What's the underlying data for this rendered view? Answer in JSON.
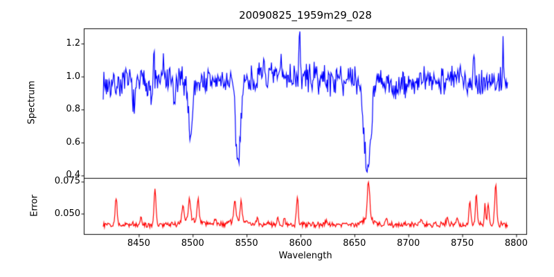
{
  "chart_data": {
    "type": "line",
    "title": "20090825_1959m29_028",
    "xlabel": "Wavelength",
    "grid": false,
    "legend": null,
    "x_start": 8417,
    "x_end": 8792,
    "x_step": 0.6,
    "xlim": [
      8399,
      8810
    ],
    "xticks": [
      8450,
      8500,
      8550,
      8600,
      8650,
      8700,
      8750,
      8800
    ],
    "xtick_labels": [
      "8450",
      "8500",
      "8550",
      "8600",
      "8650",
      "8700",
      "8750",
      "8800"
    ],
    "panels": [
      {
        "name": "spectrum",
        "ylabel": "Spectrum",
        "color": "#0000ff",
        "ylim": [
          0.385,
          1.292
        ],
        "yticks": [
          0.4,
          0.6,
          0.8,
          1.0,
          1.2
        ],
        "ytick_labels": [
          "0.4",
          "0.6",
          "0.8",
          "1.0",
          "1.2"
        ],
        "baseline": 0.97,
        "noise_amp": 0.105,
        "seed": 7,
        "features": [
          {
            "x": 8425,
            "amp": -0.02,
            "w": 8
          },
          {
            "x": 8446,
            "amp": -0.16,
            "w": 1.2
          },
          {
            "x": 8462,
            "amp": -0.15,
            "w": 0.8
          },
          {
            "x": 8464,
            "amp": 0.21,
            "w": 0.5
          },
          {
            "x": 8473,
            "amp": 0.13,
            "w": 0.5
          },
          {
            "x": 8483,
            "amp": -0.16,
            "w": 0.8
          },
          {
            "x": 8498,
            "amp": -0.33,
            "w": 1.8
          },
          {
            "x": 8542,
            "amp": -0.5,
            "w": 2.2
          },
          {
            "x": 8566,
            "amp": 0.17,
            "w": 0.5
          },
          {
            "x": 8582,
            "amp": 0.15,
            "w": 0.4
          },
          {
            "x": 8590,
            "amp": 0.03,
            "w": 25
          },
          {
            "x": 8599,
            "amp": 0.26,
            "w": 0.55
          },
          {
            "x": 8637,
            "amp": 0.16,
            "w": 0.5
          },
          {
            "x": 8662,
            "amp": -0.55,
            "w": 3.0
          },
          {
            "x": 8688,
            "amp": -0.035,
            "w": 10
          },
          {
            "x": 8742,
            "amp": 0.02,
            "w": 12
          },
          {
            "x": 8761,
            "amp": 0.15,
            "w": 0.5
          },
          {
            "x": 8788,
            "amp": 0.25,
            "w": 0.5
          }
        ]
      },
      {
        "name": "error",
        "ylabel": "Error",
        "color": "#ff0000",
        "ylim": [
          0.0335,
          0.0779
        ],
        "yticks": [
          0.05,
          0.075
        ],
        "ytick_labels": [
          "0.050",
          "0.075"
        ],
        "baseline": 0.0415,
        "noise_amp": 0.0026,
        "seed": 12,
        "features": [
          {
            "x": 8429,
            "amp": 0.022,
            "w": 0.9
          },
          {
            "x": 8452,
            "amp": 0.006,
            "w": 0.8
          },
          {
            "x": 8465,
            "amp": 0.027,
            "w": 0.9
          },
          {
            "x": 8491,
            "amp": 0.012,
            "w": 1.0
          },
          {
            "x": 8497,
            "amp": 0.015,
            "w": 1.0
          },
          {
            "x": 8500,
            "amp": 0.004,
            "w": 8
          },
          {
            "x": 8505,
            "amp": 0.016,
            "w": 0.9
          },
          {
            "x": 8521,
            "amp": 0.005,
            "w": 0.8
          },
          {
            "x": 8539,
            "amp": 0.015,
            "w": 0.9
          },
          {
            "x": 8542,
            "amp": 0.004,
            "w": 6
          },
          {
            "x": 8545,
            "amp": 0.014,
            "w": 0.9
          },
          {
            "x": 8560,
            "amp": 0.005,
            "w": 0.8
          },
          {
            "x": 8579,
            "amp": 0.006,
            "w": 0.8
          },
          {
            "x": 8585,
            "amp": 0.006,
            "w": 0.7
          },
          {
            "x": 8597,
            "amp": 0.022,
            "w": 0.8
          },
          {
            "x": 8624,
            "amp": 0.004,
            "w": 0.8
          },
          {
            "x": 8663,
            "amp": 0.03,
            "w": 1.1
          },
          {
            "x": 8663,
            "amp": 0.004,
            "w": 5
          },
          {
            "x": 8680,
            "amp": 0.004,
            "w": 0.8
          },
          {
            "x": 8712,
            "amp": 0.005,
            "w": 0.8
          },
          {
            "x": 8736,
            "amp": 0.006,
            "w": 0.8
          },
          {
            "x": 8745,
            "amp": 0.005,
            "w": 0.7
          },
          {
            "x": 8757,
            "amp": 0.019,
            "w": 0.8
          },
          {
            "x": 8763,
            "amp": 0.024,
            "w": 0.8
          },
          {
            "x": 8771,
            "amp": 0.015,
            "w": 0.7
          },
          {
            "x": 8774,
            "amp": 0.018,
            "w": 0.7
          },
          {
            "x": 8781,
            "amp": 0.033,
            "w": 0.9
          }
        ]
      }
    ]
  }
}
